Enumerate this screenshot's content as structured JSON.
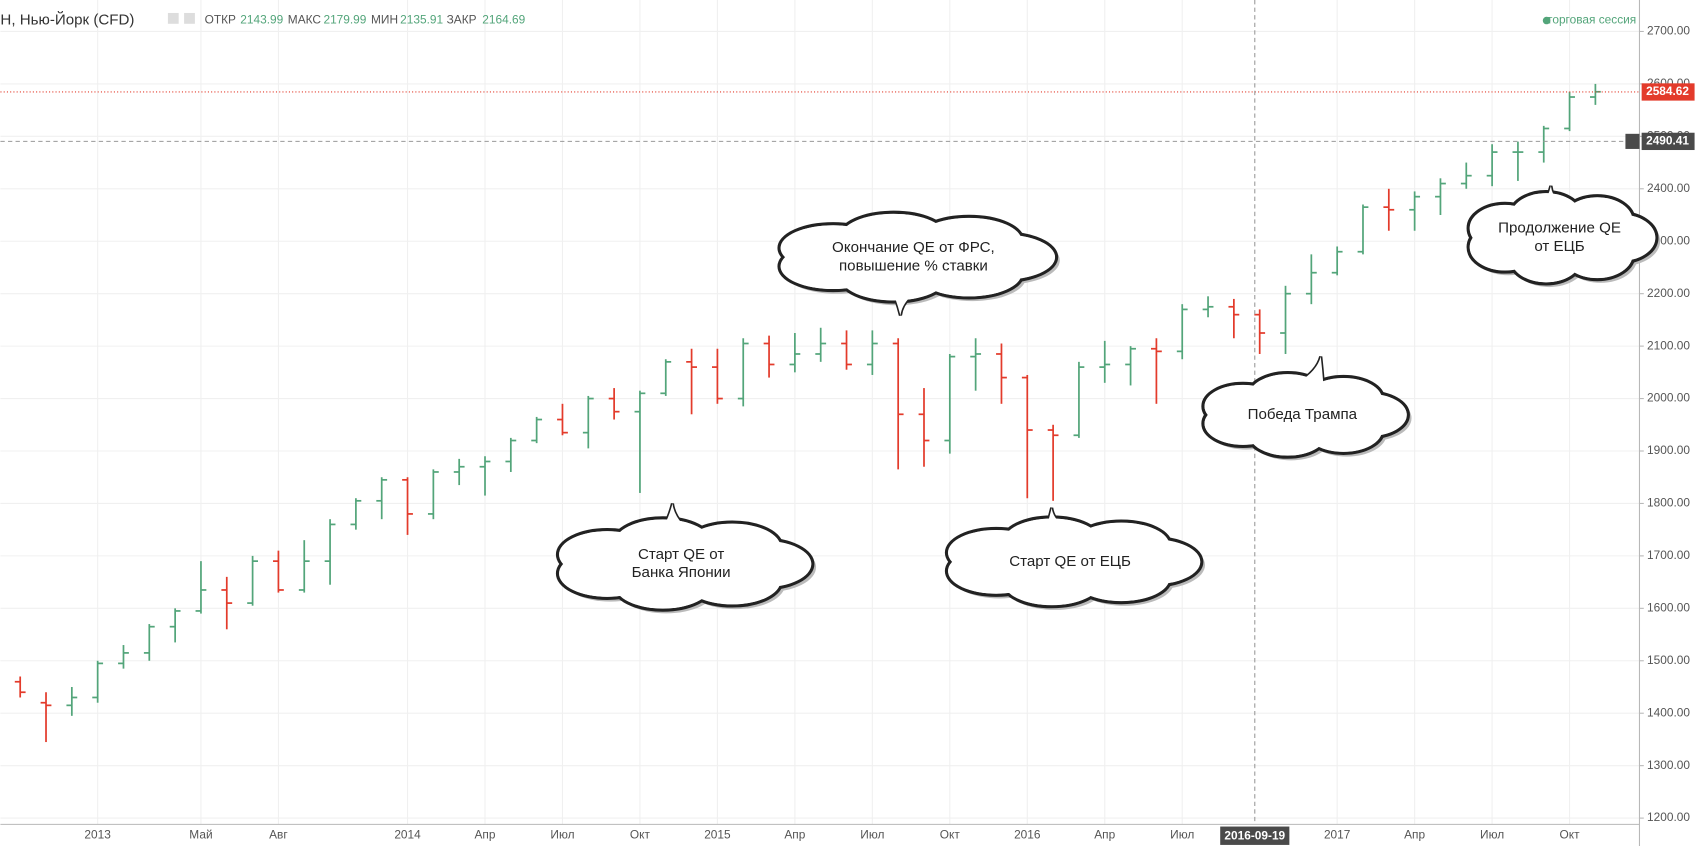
{
  "header": {
    "symbol": "Н, Нью-Йорк (CFD)",
    "stats": [
      {
        "label": "ОТКР",
        "value": 2143.99
      },
      {
        "label": "МАКС",
        "value": 2179.99
      },
      {
        "label": "МИН",
        "value": 2135.91
      },
      {
        "label": "ЗАКР",
        "value": 2164.69
      }
    ],
    "session": "торговая сессия"
  },
  "chart_data": {
    "type": "ohlc",
    "categories": [
      null,
      null,
      null,
      "2013",
      null,
      null,
      null,
      "Май",
      null,
      null,
      "Авг",
      null,
      null,
      null,
      null,
      "2014",
      null,
      null,
      "Апр",
      null,
      null,
      "Июл",
      null,
      null,
      "Окт",
      null,
      null,
      "2015",
      null,
      null,
      "Апр",
      null,
      null,
      "Июл",
      null,
      null,
      "Окт",
      null,
      null,
      "2016",
      null,
      null,
      "Апр",
      null,
      null,
      "Июл",
      null,
      null,
      null,
      null,
      null,
      "2017",
      null,
      null,
      "Апр",
      null,
      null,
      "Июл",
      null,
      null,
      "Окт",
      null
    ],
    "open": [
      1460,
      1420,
      1415,
      1430,
      1495,
      1515,
      1565,
      1595,
      1635,
      1610,
      1690,
      1635,
      1690,
      1760,
      1805,
      1845,
      1780,
      1860,
      1870,
      1880,
      1920,
      1960,
      1935,
      2000,
      1975,
      2010,
      2070,
      2060,
      2000,
      2105,
      2065,
      2085,
      2105,
      2065,
      2105,
      1970,
      1920,
      2080,
      2085,
      2040,
      1940,
      1930,
      2060,
      2065,
      2095,
      2090,
      2170,
      2175,
      2160,
      2125,
      2200,
      2240,
      2280,
      2365,
      2360,
      2385,
      2410,
      2425,
      2470,
      2470,
      2515,
      2575
    ],
    "high": [
      1470,
      1440,
      1450,
      1500,
      1530,
      1570,
      1600,
      1690,
      1660,
      1700,
      1710,
      1730,
      1770,
      1810,
      1850,
      1850,
      1865,
      1885,
      1890,
      1925,
      1965,
      1990,
      2005,
      2020,
      2015,
      2075,
      2095,
      2095,
      2115,
      2120,
      2125,
      2135,
      2130,
      2130,
      2115,
      2020,
      2085,
      2115,
      2105,
      2045,
      1950,
      2070,
      2110,
      2100,
      2115,
      2180,
      2195,
      2190,
      2170,
      2215,
      2275,
      2290,
      2370,
      2400,
      2395,
      2420,
      2450,
      2485,
      2490,
      2520,
      2585,
      2600
    ],
    "low": [
      1430,
      1345,
      1395,
      1420,
      1485,
      1500,
      1535,
      1590,
      1560,
      1605,
      1630,
      1630,
      1645,
      1750,
      1770,
      1740,
      1770,
      1835,
      1815,
      1860,
      1915,
      1930,
      1905,
      1960,
      1820,
      2005,
      1970,
      1990,
      1985,
      2040,
      2050,
      2070,
      2055,
      2045,
      1865,
      1870,
      1895,
      2015,
      1990,
      1810,
      1805,
      1925,
      2030,
      2025,
      1990,
      2075,
      2155,
      2115,
      2085,
      2085,
      2180,
      2235,
      2275,
      2320,
      2320,
      2350,
      2400,
      2405,
      2415,
      2450,
      2510,
      2560
    ],
    "close": [
      1440,
      1415,
      1430,
      1495,
      1515,
      1565,
      1595,
      1635,
      1610,
      1690,
      1635,
      1690,
      1760,
      1805,
      1845,
      1780,
      1860,
      1870,
      1880,
      1920,
      1960,
      1935,
      2000,
      1975,
      2010,
      2070,
      2060,
      2000,
      2105,
      2065,
      2085,
      2105,
      2065,
      2105,
      1970,
      1920,
      2080,
      2085,
      2040,
      1940,
      1930,
      2060,
      2065,
      2095,
      2090,
      2170,
      2175,
      2160,
      2125,
      2200,
      2240,
      2280,
      2365,
      2360,
      2385,
      2410,
      2425,
      2470,
      2470,
      2515,
      2575,
      2585
    ],
    "up_color": "#53a57a",
    "down_color": "#e33b2b",
    "ylim": [
      1188,
      2760
    ],
    "yticks": [
      {
        "value": 1200,
        "label": "1200.00"
      },
      {
        "value": 1300,
        "label": "1300.00"
      },
      {
        "value": 1400,
        "label": "1400.00"
      },
      {
        "value": 1500,
        "label": "1500.00"
      },
      {
        "value": 1600,
        "label": "1600.00"
      },
      {
        "value": 1700,
        "label": "1700.00"
      },
      {
        "value": 1800,
        "label": "1800.00"
      },
      {
        "value": 1900,
        "label": "1900.00"
      },
      {
        "value": 2000,
        "label": "2000.00"
      },
      {
        "value": 2100,
        "label": "2100.00"
      },
      {
        "value": 2200,
        "label": "2200.00"
      },
      {
        "value": 2300,
        "label": "2300.00"
      },
      {
        "value": 2400,
        "label": "2400.00"
      },
      {
        "value": 2500,
        "label": "2500.00"
      },
      {
        "value": 2600,
        "label": "2600.00"
      },
      {
        "value": 2700,
        "label": "2700.00"
      }
    ],
    "grid": true,
    "last_price": 2584.62,
    "crosshair": {
      "date": "2016-09-19",
      "price": 2490.41
    },
    "annotations": [
      {
        "lines": [
          "Окончание QE от ФРС,",
          "повышение % ставки"
        ]
      },
      {
        "lines": [
          "Старт QE от",
          "Банка Японии"
        ]
      },
      {
        "lines": [
          "Старт QE от ЕЦБ"
        ]
      },
      {
        "lines": [
          "Победа Трампа"
        ]
      },
      {
        "lines": [
          "Продолжение QE",
          "от ЕЦБ"
        ]
      }
    ]
  }
}
